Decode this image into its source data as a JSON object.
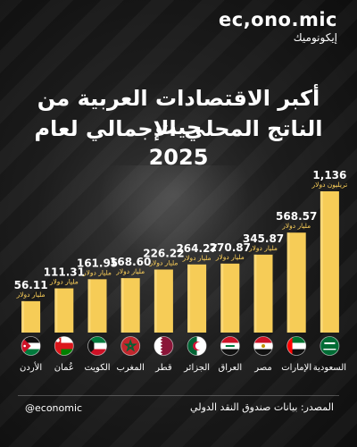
{
  "brand": {
    "name": "ec,ono.mic",
    "subtitle": "إيكونوميك"
  },
  "title": {
    "line1": "أكبر الاقتصادات العربية من حيث",
    "line2": "الناتج المحلي الإجمالي لعام 2025"
  },
  "footer": {
    "handle": "@economic",
    "source": "المصدر: بيانات صندوق النقد الدولي"
  },
  "colors": {
    "bar": "#f6cc57",
    "bar_edge": "#ffe08a",
    "unit": "#ffd25a"
  },
  "chart_data": {
    "type": "bar",
    "title": "أكبر الاقتصادات العربية من حيث الناتج المحلي الإجمالي لعام 2025",
    "xlabel": "",
    "ylabel": "",
    "ylim": [
      0,
      1136
    ],
    "grid": false,
    "categories": [
      "الأردن",
      "عُمان",
      "الكويت",
      "المغرب",
      "قطر",
      "الجزائر",
      "العراق",
      "مصر",
      "الإمارات",
      "السعودية"
    ],
    "values": [
      56.11,
      111.31,
      161.95,
      168.6,
      226.22,
      264.27,
      270.87,
      345.87,
      568.57,
      1136
    ],
    "value_labels": [
      "56.11",
      "111.31",
      "161.95",
      "168.60",
      "226.22",
      "264.27",
      "270.87",
      "345.87",
      "568.57",
      "1,136"
    ],
    "unit_labels": [
      "مليار دولار",
      "مليار دولار",
      "مليار دولار",
      "مليار دولار",
      "مليار دولار",
      "مليار دولار",
      "مليار دولار",
      "مليار دولار",
      "مليار دولار",
      "تريليون دولار"
    ],
    "flags": [
      "jordan-flag",
      "oman-flag",
      "kuwait-flag",
      "morocco-flag",
      "qatar-flag",
      "algeria-flag",
      "iraq-flag",
      "egypt-flag",
      "uae-flag",
      "saudi-flag"
    ]
  }
}
